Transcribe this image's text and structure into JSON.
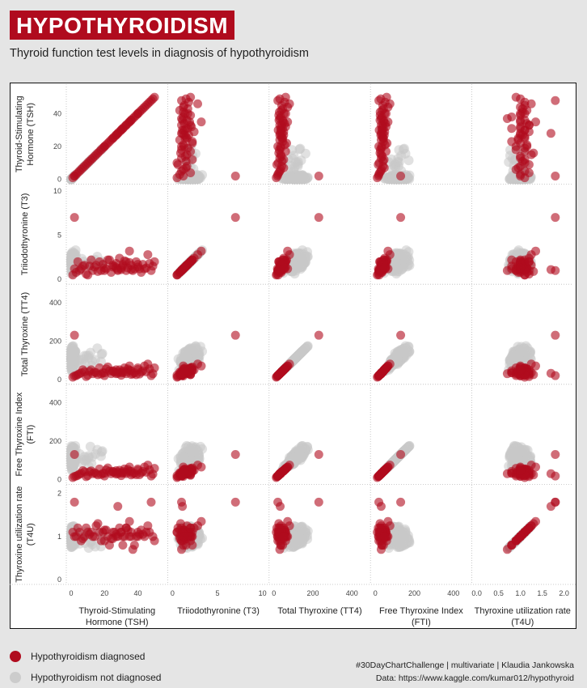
{
  "header": {
    "title": "HYPOTHYROIDISM",
    "subtitle": "Thyroid function test levels in diagnosis of hypothyroidism"
  },
  "legend": {
    "items": [
      {
        "label": "Hypothyroidism diagnosed",
        "color": "#b00b1e"
      },
      {
        "label": "Hypothyroidism not diagnosed",
        "color": "#cccccc"
      }
    ]
  },
  "credits": {
    "line1": "#30DayChartChallenge  |  multivariate  |  Klaudia Jankowska",
    "line2": "Data: https://www.kaggle.com/kumar012/hypothyroid"
  },
  "chart_data": {
    "type": "scatter",
    "variables": [
      {
        "key": "TSH",
        "label_lines": [
          "Thyroid-Stimulating",
          "Hormone (TSH)"
        ],
        "range": [
          0,
          55
        ],
        "ticks": [
          0,
          20,
          40
        ]
      },
      {
        "key": "T3",
        "label_lines": [
          "Triiodothyronine (T3)"
        ],
        "range": [
          0,
          10.2
        ],
        "ticks": [
          0,
          5,
          10
        ]
      },
      {
        "key": "TT4",
        "label_lines": [
          "Total Thyroxine (TT4)"
        ],
        "range": [
          0,
          470
        ],
        "ticks": [
          0,
          200,
          400
        ]
      },
      {
        "key": "FTI",
        "label_lines": [
          "Free Thyroxine Index",
          "(FTI)"
        ],
        "range": [
          0,
          470
        ],
        "ticks": [
          0,
          200,
          400
        ]
      },
      {
        "key": "T4U",
        "label_lines": [
          "Thyroxine utilization rate",
          "(T4U)"
        ],
        "range": [
          0,
          2.1
        ],
        "ticks": [
          0.0,
          0.5,
          1.0,
          1.5,
          2.0
        ]
      }
    ],
    "y_ticks": {
      "TSH": [
        0,
        20,
        40
      ],
      "T3": [
        0,
        5,
        10
      ],
      "TT4": [
        0,
        200,
        400
      ],
      "FTI": [
        0,
        200,
        400
      ],
      "T4U": [
        0,
        1,
        2
      ]
    },
    "series": [
      {
        "name": "Hypothyroidism diagnosed",
        "color": "#b00b1e",
        "points": [
          [
            1,
            0.5,
            12,
            10,
            1.1
          ],
          [
            3,
            0.8,
            20,
            18,
            1.0
          ],
          [
            5,
            1.0,
            30,
            28,
            1.1
          ],
          [
            6,
            1.2,
            35,
            32,
            0.9
          ],
          [
            8,
            1.6,
            40,
            40,
            1.0
          ],
          [
            9,
            0.6,
            15,
            15,
            1.2
          ],
          [
            11,
            1.5,
            42,
            40,
            1.05
          ],
          [
            12,
            2.2,
            50,
            45,
            1.1
          ],
          [
            14,
            1.4,
            38,
            36,
            1.0
          ],
          [
            16,
            0.9,
            25,
            24,
            1.3
          ],
          [
            17,
            2.0,
            60,
            55,
            1.1
          ],
          [
            18,
            1.0,
            28,
            26,
            0.9
          ],
          [
            19,
            1.7,
            35,
            32,
            1.1
          ],
          [
            21,
            1.2,
            55,
            50,
            1.15
          ],
          [
            22,
            2.2,
            65,
            60,
            1.0
          ],
          [
            24,
            0.8,
            30,
            30,
            0.95
          ],
          [
            25,
            1.4,
            45,
            42,
            1.1
          ],
          [
            27,
            1.8,
            30,
            28,
            1.05
          ],
          [
            28,
            1.0,
            40,
            38,
            1.0
          ],
          [
            29,
            2.4,
            50,
            48,
            1.2
          ],
          [
            30,
            1.1,
            22,
            20,
            1.1
          ],
          [
            31,
            1.5,
            35,
            33,
            0.8
          ],
          [
            32,
            2.1,
            60,
            55,
            1.0
          ],
          [
            33,
            1.0,
            40,
            38,
            1.2
          ],
          [
            34,
            1.3,
            55,
            52,
            1.15
          ],
          [
            35,
            3.2,
            70,
            65,
            1.35
          ],
          [
            36,
            1.6,
            45,
            42,
            1.0
          ],
          [
            37,
            1.0,
            30,
            30,
            0.7
          ],
          [
            38,
            1.2,
            35,
            33,
            0.8
          ],
          [
            39,
            2.0,
            25,
            25,
            1.0
          ],
          [
            40,
            1.4,
            60,
            55,
            1.1
          ],
          [
            42,
            0.8,
            38,
            35,
            1.15
          ],
          [
            44,
            1.2,
            70,
            65,
            1.0
          ],
          [
            46,
            2.8,
            80,
            75,
            1.25
          ],
          [
            47,
            1.8,
            55,
            50,
            1.1
          ],
          [
            49,
            1.5,
            30,
            28,
            1.0
          ],
          [
            48,
            1.0,
            20,
            18,
            1.8
          ],
          [
            50,
            2.0,
            60,
            58,
            0.9
          ],
          [
            45,
            1.3,
            40,
            38,
            1.1
          ],
          [
            43,
            1.7,
            45,
            42,
            1.05
          ],
          [
            2,
            1.2,
            18,
            16,
            1.0
          ],
          [
            4,
            2.0,
            25,
            22,
            1.2
          ],
          [
            7,
            1.5,
            50,
            46,
            0.95
          ],
          [
            10,
            0.5,
            22,
            20,
            1.1
          ],
          [
            13,
            1.0,
            30,
            30,
            1.0
          ],
          [
            15,
            1.6,
            35,
            30,
            1.25
          ],
          [
            20,
            1.0,
            20,
            18,
            0.9
          ],
          [
            23,
            2.2,
            45,
            42,
            0.8
          ],
          [
            26,
            1.5,
            38,
            36,
            1.1
          ],
          [
            41,
            1.2,
            28,
            25,
            1.05
          ],
          [
            28,
            1.1,
            32,
            30,
            1.7
          ],
          [
            35,
            1.9,
            48,
            44,
            1.0
          ],
          [
            30,
            1.3,
            36,
            35,
            1.1
          ],
          [
            40,
            1.7,
            52,
            48,
            1.0
          ],
          [
            20,
            1.3,
            34,
            32,
            1.15
          ],
          [
            25,
            1.6,
            42,
            40,
            0.95
          ],
          [
            33,
            2.0,
            30,
            30,
            1.2
          ],
          [
            36,
            1.1,
            26,
            24,
            1.1
          ],
          [
            31,
            1.7,
            44,
            41,
            1.0
          ],
          [
            27,
            1.3,
            50,
            46,
            1.0
          ],
          [
            2,
            7.0,
            230,
            130,
            1.8
          ]
        ]
      }
    ]
  }
}
